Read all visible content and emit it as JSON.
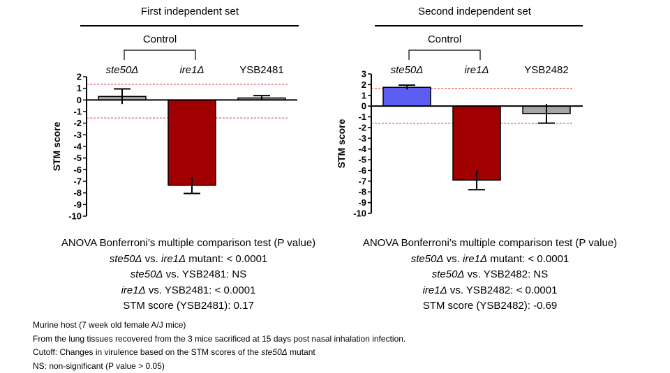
{
  "chart_data": [
    {
      "type": "bar",
      "title": "First independent set",
      "bracket_label": "Control",
      "ylabel": "STM score",
      "ylim": [
        -10,
        2
      ],
      "yticks": [
        2,
        1,
        0,
        -1,
        -2,
        -3,
        -4,
        -5,
        -6,
        -7,
        -8,
        -9,
        -10
      ],
      "categories": [
        "ste50Δ",
        "ire1Δ",
        "YSB2481"
      ],
      "italic_categories": [
        true,
        true,
        false
      ],
      "values": [
        0.3,
        -7.35,
        0.17
      ],
      "error": [
        0.65,
        0.7,
        0.2
      ],
      "bar_colors": [
        "#a6a6a6",
        "#a00000",
        "#a6a6a6"
      ],
      "cutoffs": [
        1.35,
        -1.55
      ],
      "cutoff_color": "#e03030"
    },
    {
      "type": "bar",
      "title": "Second independent set",
      "bracket_label": "Control",
      "ylabel": "STM score",
      "ylim": [
        -10,
        3
      ],
      "yticks": [
        3,
        2,
        1,
        0,
        -1,
        -2,
        -3,
        -4,
        -5,
        -6,
        -7,
        -8,
        -9,
        -10
      ],
      "categories": [
        "ste50Δ",
        "ire1Δ",
        "YSB2482"
      ],
      "italic_categories": [
        true,
        true,
        false
      ],
      "values": [
        1.75,
        -6.9,
        -0.69
      ],
      "error": [
        0.2,
        0.9,
        0.9
      ],
      "bar_colors": [
        "#5b5ef0",
        "#a00000",
        "#a6a6a6"
      ],
      "cutoffs": [
        1.65,
        -1.6
      ],
      "cutoff_color": "#e03030"
    }
  ],
  "stats": [
    {
      "heading": "ANOVA Bonferroni’s multiple comparison test (P value)",
      "line1": {
        "a": "ste50Δ",
        "b": " vs. ",
        "c": "ire1Δ",
        "d": " mutant: < 0.0001"
      },
      "line2": {
        "a": "ste50Δ",
        "b": " vs. YSB2481: NS"
      },
      "line3": {
        "a": "ire1Δ",
        "b": " vs. YSB2481: < 0.0001"
      },
      "line4": "STM score (YSB2481): 0.17"
    },
    {
      "heading": "ANOVA Bonferroni’s multiple comparison test (P value)",
      "line1": {
        "a": "ste50Δ",
        "b": " vs. ",
        "c": "ire1Δ",
        "d": " mutant: < 0.0001"
      },
      "line2": {
        "a": "ste50Δ",
        "b": " vs. YSB2482:  NS"
      },
      "line3": {
        "a": "ire1Δ",
        "b": " vs. YSB2482: < 0.0001"
      },
      "line4": "STM score (YSB2482): -0.69"
    }
  ],
  "footnotes": {
    "line1": "Murine host (7 week old female A/J mice)",
    "line2": "From  the lung tissues recovered from  the 3 mice sacrificed at 15 days post nasal inhalation infection.",
    "line3_a": "Cutoff: Changes in virulence based on the STM scores of the ",
    "line3_b": "ste50Δ",
    "line3_c": " mutant",
    "line4": "NS: non-significant (P value > 0.05)"
  }
}
